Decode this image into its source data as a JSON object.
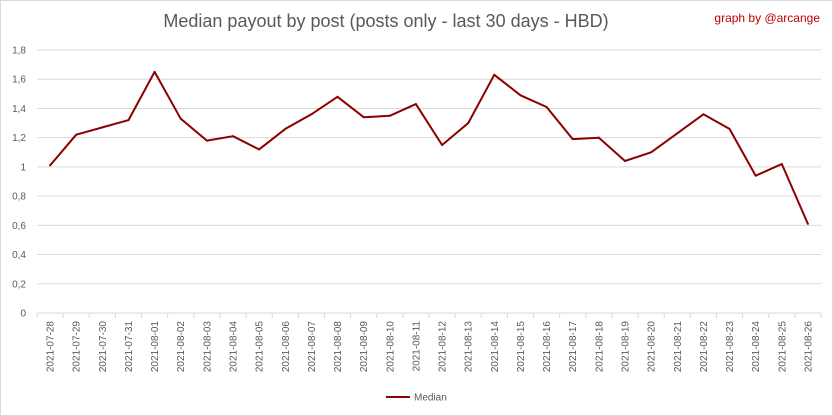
{
  "header": {
    "title": "Median payout by post (posts only - last 30 days - HBD)",
    "credit": "graph by @arcange"
  },
  "colors": {
    "series": "#8b0000",
    "grid": "#d9d9d9",
    "text": "#595959",
    "credit": "#c00000"
  },
  "chart_data": {
    "type": "line",
    "title": "Median payout by post (posts only - last 30 days - HBD)",
    "xlabel": "",
    "ylabel": "",
    "ylim": [
      0,
      1.8
    ],
    "yticks": [
      "0",
      "0,2",
      "0,4",
      "0,6",
      "0,8",
      "1",
      "1,2",
      "1,4",
      "1,6",
      "1,8"
    ],
    "grid": true,
    "legend_position": "bottom",
    "categories": [
      "2021-07-28",
      "2021-07-29",
      "2021-07-30",
      "2021-07-31",
      "2021-08-01",
      "2021-08-02",
      "2021-08-03",
      "2021-08-04",
      "2021-08-05",
      "2021-08-06",
      "2021-08-07",
      "2021-08-08",
      "2021-08-09",
      "2021-08-10",
      "2021-08-11",
      "2021-08-12",
      "2021-08-13",
      "2021-08-14",
      "2021-08-15",
      "2021-08-16",
      "2021-08-17",
      "2021-08-18",
      "2021-08-19",
      "2021-08-20",
      "2021-08-21",
      "2021-08-22",
      "2021-08-23",
      "2021-08-24",
      "2021-08-25",
      "2021-08-26"
    ],
    "series": [
      {
        "name": "Median",
        "values": [
          1.01,
          1.22,
          1.27,
          1.32,
          1.65,
          1.33,
          1.18,
          1.21,
          1.12,
          1.26,
          1.36,
          1.48,
          1.34,
          1.35,
          1.43,
          1.15,
          1.3,
          1.63,
          1.49,
          1.41,
          1.19,
          1.2,
          1.04,
          1.1,
          1.23,
          1.36,
          1.26,
          0.94,
          1.02,
          0.61
        ]
      }
    ]
  }
}
